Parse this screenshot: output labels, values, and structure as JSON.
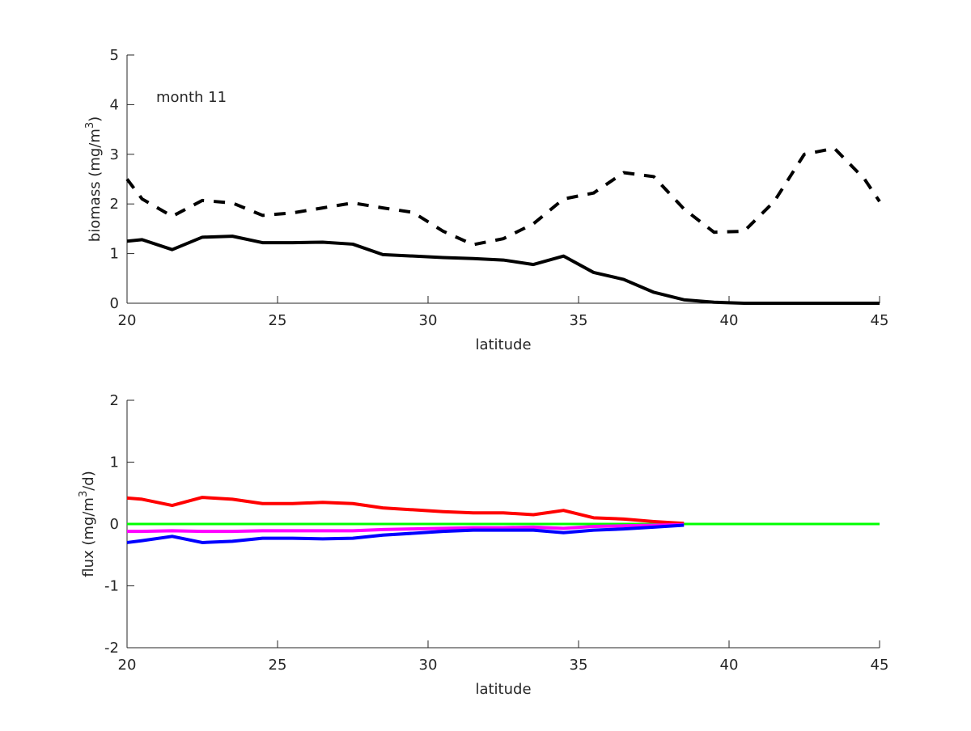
{
  "chart_data": [
    {
      "type": "line",
      "title": "",
      "annotation": "month 11",
      "xlabel": "latitude",
      "ylabel": "biomass (mg/m^3)",
      "ylabel_main": "biomass (mg/m",
      "ylabel_sup": "3",
      "ylabel_end": ")",
      "xlim": [
        20,
        45
      ],
      "ylim": [
        0,
        5
      ],
      "xticks": [
        20,
        25,
        30,
        35,
        40,
        45
      ],
      "yticks": [
        0,
        1,
        2,
        3,
        4,
        5
      ],
      "grid": false,
      "x": [
        20,
        20.5,
        21.5,
        22.5,
        23.5,
        24.5,
        25.5,
        26.5,
        27.5,
        28.5,
        29.5,
        30.5,
        31.5,
        32.5,
        33.5,
        34.5,
        35.5,
        36.5,
        37.5,
        38.5,
        39.5,
        40.5,
        41.5,
        42.5,
        43.5,
        44.5,
        45
      ],
      "series": [
        {
          "name": "solid",
          "color": "#000000",
          "style": "solid",
          "values": [
            1.25,
            1.28,
            1.08,
            1.33,
            1.35,
            1.22,
            1.22,
            1.23,
            1.19,
            0.98,
            0.95,
            0.92,
            0.9,
            0.87,
            0.78,
            0.95,
            0.62,
            0.48,
            0.22,
            0.07,
            0.02,
            0,
            0,
            0,
            0,
            0,
            0
          ]
        },
        {
          "name": "dashed",
          "color": "#000000",
          "style": "dashed",
          "values": [
            2.5,
            2.1,
            1.75,
            2.07,
            2.02,
            1.77,
            1.82,
            1.92,
            2.02,
            1.92,
            1.83,
            1.45,
            1.18,
            1.3,
            1.6,
            2.1,
            2.22,
            2.63,
            2.55,
            1.9,
            1.43,
            1.45,
            2.05,
            3.0,
            3.12,
            2.5,
            2.05
          ]
        }
      ]
    },
    {
      "type": "line",
      "title": "",
      "xlabel": "latitude",
      "ylabel": "flux (mg/m^3/d)",
      "ylabel_main": "flux (mg/m",
      "ylabel_sup": "3",
      "ylabel_end": "/d)",
      "xlim": [
        20,
        45
      ],
      "ylim": [
        -2,
        2
      ],
      "xticks": [
        20,
        25,
        30,
        35,
        40,
        45
      ],
      "yticks": [
        -2,
        -1,
        0,
        1,
        2
      ],
      "grid": false,
      "x": [
        20,
        20.5,
        21.5,
        22.5,
        23.5,
        24.5,
        25.5,
        26.5,
        27.5,
        28.5,
        29.5,
        30.5,
        31.5,
        32.5,
        33.5,
        34.5,
        35.5,
        36.5,
        37.5,
        38.5
      ],
      "series": [
        {
          "name": "black",
          "color": "#000000",
          "values": [
            0,
            0,
            0,
            0,
            0,
            0,
            0,
            0,
            0,
            0,
            0,
            0,
            0,
            0,
            0,
            0,
            0,
            0,
            0,
            0
          ],
          "extend_to": 45
        },
        {
          "name": "green",
          "color": "#00ff00",
          "values": [
            0,
            0,
            0,
            0,
            0,
            0,
            0,
            0,
            0,
            0,
            0,
            0,
            0,
            0,
            0,
            0,
            0,
            0,
            0,
            0
          ],
          "extend_to": 45
        },
        {
          "name": "red",
          "color": "#ff0000",
          "values": [
            0.42,
            0.4,
            0.3,
            0.43,
            0.4,
            0.33,
            0.33,
            0.35,
            0.33,
            0.26,
            0.23,
            0.2,
            0.18,
            0.18,
            0.15,
            0.22,
            0.1,
            0.08,
            0.04,
            0.01
          ]
        },
        {
          "name": "magenta",
          "color": "#ff00ff",
          "values": [
            -0.12,
            -0.12,
            -0.11,
            -0.12,
            -0.12,
            -0.11,
            -0.11,
            -0.11,
            -0.11,
            -0.09,
            -0.08,
            -0.07,
            -0.06,
            -0.06,
            -0.05,
            -0.07,
            -0.04,
            -0.03,
            -0.02,
            -0.01
          ]
        },
        {
          "name": "blue",
          "color": "#0000ff",
          "values": [
            -0.3,
            -0.27,
            -0.2,
            -0.3,
            -0.28,
            -0.23,
            -0.23,
            -0.24,
            -0.23,
            -0.18,
            -0.15,
            -0.12,
            -0.1,
            -0.1,
            -0.1,
            -0.14,
            -0.1,
            -0.08,
            -0.05,
            -0.02
          ]
        }
      ]
    }
  ]
}
